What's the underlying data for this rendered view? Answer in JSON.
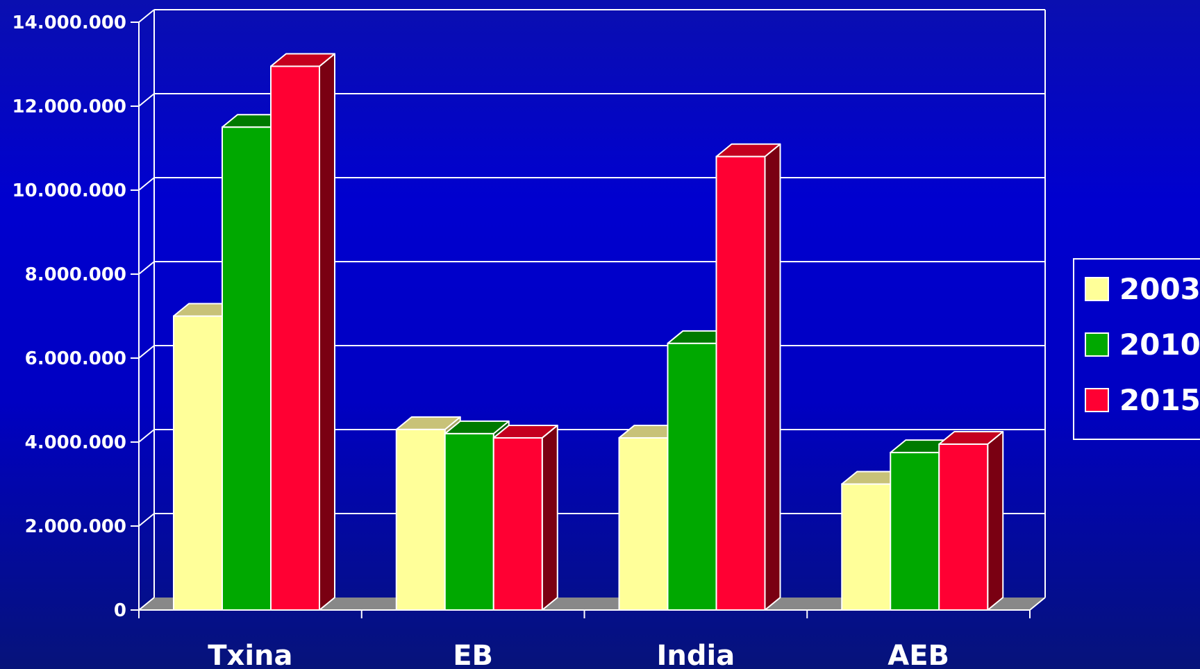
{
  "chart_data": {
    "type": "bar",
    "categories": [
      "Txina",
      "EB",
      "India",
      "AEB"
    ],
    "series": [
      {
        "name": "2003",
        "values": [
          7000000,
          4300000,
          4100000,
          3000000
        ]
      },
      {
        "name": "2010",
        "values": [
          11500000,
          4200000,
          6350000,
          3750000
        ]
      },
      {
        "name": "2015",
        "values": [
          12950000,
          4100000,
          10800000,
          3950000
        ]
      }
    ],
    "y_ticks": [
      "0",
      "2.000.000",
      "4.000.000",
      "6.000.000",
      "8.000.000",
      "10.000.000",
      "12.000.000",
      "14.000.000"
    ],
    "ylim": [
      0,
      14000000
    ],
    "grid": true,
    "legend": "right",
    "style": "3d"
  },
  "colors": {
    "2003": {
      "front": "#ffff99",
      "top": "#c8c278",
      "side": "#a6a264"
    },
    "2010": {
      "front": "#00a800",
      "top": "#007a00",
      "side": "#005a00"
    },
    "2015": {
      "front": "#ff0033",
      "top": "#c4001e",
      "side": "#7a0012"
    },
    "floor": "#888888",
    "grid": "#ffffff",
    "axis": "#ffffff"
  }
}
